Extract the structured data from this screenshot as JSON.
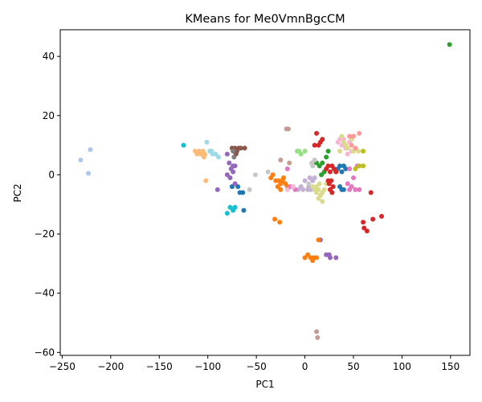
{
  "chart_data": {
    "type": "scatter",
    "title": "KMeans for Me0VmnBgcCM",
    "xlabel": "PC1",
    "ylabel": "PC2",
    "xlim": [
      -252,
      170
    ],
    "ylim": [
      -61,
      49
    ],
    "xticks": [
      -250,
      -200,
      -150,
      -100,
      -50,
      0,
      50,
      100,
      150
    ],
    "yticks": [
      -60,
      -40,
      -20,
      0,
      20,
      40
    ],
    "grid": false,
    "legend": "none",
    "series": [
      {
        "color": "#aec7e8",
        "points": [
          [
            -231,
            5
          ],
          [
            -221,
            8.5
          ],
          [
            -223,
            0.5
          ]
        ]
      },
      {
        "color": "#2ca02c",
        "points": [
          [
            149,
            44
          ],
          [
            18,
            4
          ],
          [
            22,
            6
          ],
          [
            15,
            3
          ],
          [
            20,
            1
          ],
          [
            17,
            0
          ],
          [
            24,
            8
          ],
          [
            12,
            4
          ]
        ]
      },
      {
        "color": "#17becf",
        "points": [
          [
            -125,
            10
          ],
          [
            -80,
            -13
          ],
          [
            -77,
            -11
          ],
          [
            -74,
            -12
          ],
          [
            -72,
            -11
          ]
        ]
      },
      {
        "color": "#9edae5",
        "points": [
          [
            -101,
            11
          ],
          [
            -98,
            8
          ],
          [
            -95,
            7
          ],
          [
            -92,
            7
          ],
          [
            -89,
            6
          ],
          [
            -96,
            8
          ]
        ]
      },
      {
        "color": "#ffbb78",
        "points": [
          [
            -113,
            8
          ],
          [
            -111,
            7
          ],
          [
            -109,
            8
          ],
          [
            -107,
            7
          ],
          [
            -105,
            8
          ],
          [
            -104,
            6
          ],
          [
            -103,
            7
          ],
          [
            -102,
            -2
          ]
        ]
      },
      {
        "color": "#1f77b4",
        "points": [
          [
            -75,
            -4
          ],
          [
            -69,
            -4
          ],
          [
            -67,
            -6
          ],
          [
            -64,
            -6
          ],
          [
            -63,
            -12
          ],
          [
            34,
            2
          ],
          [
            36,
            3
          ],
          [
            38,
            1
          ],
          [
            40,
            3
          ],
          [
            42,
            2
          ],
          [
            36,
            -4
          ],
          [
            38,
            -5
          ],
          [
            40,
            -5
          ]
        ]
      },
      {
        "color": "#9467bd",
        "points": [
          [
            -80,
            7
          ],
          [
            -78,
            4
          ],
          [
            -76,
            2
          ],
          [
            -74,
            3
          ],
          [
            -80,
            0
          ],
          [
            -77,
            -1
          ],
          [
            -74,
            1
          ],
          [
            -72,
            -3
          ],
          [
            -90,
            -5
          ],
          [
            -72,
            3
          ],
          [
            16,
            -22
          ],
          [
            22,
            -27
          ],
          [
            25,
            -27
          ],
          [
            26,
            -28
          ],
          [
            32,
            -28
          ]
        ]
      },
      {
        "color": "#8c564b",
        "points": [
          [
            -75,
            9
          ],
          [
            -72,
            9
          ],
          [
            -70,
            8
          ],
          [
            -68,
            9
          ],
          [
            -66,
            9
          ],
          [
            -71,
            7
          ],
          [
            -62,
            9
          ]
        ]
      },
      {
        "color": "#7f7f7f",
        "points": [
          [
            -74,
            8
          ],
          [
            -73,
            6
          ]
        ]
      },
      {
        "color": "#c5b0d5",
        "points": [
          [
            -7,
            -5
          ],
          [
            -2,
            -5
          ],
          [
            3,
            -5
          ],
          [
            6,
            -5
          ],
          [
            8,
            -2
          ],
          [
            0,
            -2
          ],
          [
            5,
            -1
          ],
          [
            10,
            -1
          ],
          [
            4,
            -4
          ],
          [
            -4,
            -4
          ]
        ]
      },
      {
        "color": "#c7c7c7",
        "points": [
          [
            -57,
            -5
          ],
          [
            -51,
            0
          ],
          [
            -38,
            1
          ],
          [
            4,
            -3
          ],
          [
            7,
            4
          ],
          [
            10,
            5
          ],
          [
            8,
            3
          ]
        ]
      },
      {
        "color": "#ff7f0e",
        "points": [
          [
            -30,
            -2
          ],
          [
            -27,
            -2
          ],
          [
            -25,
            -3
          ],
          [
            -23,
            -2
          ],
          [
            -28,
            -4
          ],
          [
            -25,
            -5
          ],
          [
            -20,
            -3
          ],
          [
            -18,
            -4
          ],
          [
            -22,
            -1
          ],
          [
            -35,
            -1
          ],
          [
            -33,
            0
          ],
          [
            -31,
            -15
          ],
          [
            -26,
            -16
          ],
          [
            0,
            -28
          ],
          [
            3,
            -27
          ],
          [
            6,
            -28
          ],
          [
            8,
            -29
          ],
          [
            9,
            -28
          ],
          [
            12,
            -28
          ],
          [
            14,
            -22
          ]
        ]
      },
      {
        "color": "#e377c2",
        "points": [
          [
            -18,
            2
          ],
          [
            -15,
            -4
          ],
          [
            -10,
            -5
          ],
          [
            44,
            -3
          ],
          [
            48,
            -4
          ],
          [
            52,
            -5
          ],
          [
            56,
            -5
          ],
          [
            46,
            2
          ],
          [
            50,
            -1
          ],
          [
            54,
            3
          ],
          [
            46,
            -5
          ]
        ]
      },
      {
        "color": "#f7b6d2",
        "points": [
          [
            -12,
            -4
          ],
          [
            -18,
            -5
          ],
          [
            36,
            12
          ],
          [
            38,
            10
          ],
          [
            42,
            9
          ],
          [
            44,
            7
          ],
          [
            46,
            11
          ],
          [
            48,
            8
          ],
          [
            40,
            12
          ],
          [
            34,
            11
          ]
        ]
      },
      {
        "color": "#c49c94",
        "points": [
          [
            -19,
            15.5
          ],
          [
            -17,
            15.5
          ],
          [
            -25,
            5
          ],
          [
            -16,
            4
          ],
          [
            12,
            -53
          ],
          [
            13,
            -55
          ]
        ]
      },
      {
        "color": "#98df8a",
        "points": [
          [
            -8,
            8
          ],
          [
            -6,
            8
          ],
          [
            -4,
            7
          ],
          [
            0,
            8
          ]
        ]
      },
      {
        "color": "#dbdb8d",
        "points": [
          [
            10,
            -5
          ],
          [
            12,
            -6
          ],
          [
            14,
            -8
          ],
          [
            16,
            -7
          ],
          [
            18,
            -6
          ],
          [
            20,
            -5
          ],
          [
            22,
            -3
          ],
          [
            15,
            -3
          ],
          [
            12,
            -4
          ],
          [
            18,
            -9
          ],
          [
            14,
            -5
          ],
          [
            8,
            -4
          ],
          [
            38,
            13
          ],
          [
            40,
            11
          ],
          [
            44,
            9
          ],
          [
            48,
            12
          ],
          [
            50,
            8
          ],
          [
            55,
            8
          ],
          [
            36,
            8
          ],
          [
            42,
            10
          ]
        ]
      },
      {
        "color": "#d62728",
        "points": [
          [
            12,
            14
          ],
          [
            14,
            10
          ],
          [
            16,
            11
          ],
          [
            18,
            12
          ],
          [
            10,
            10
          ],
          [
            22,
            2
          ],
          [
            24,
            3
          ],
          [
            26,
            1
          ],
          [
            28,
            3
          ],
          [
            30,
            2
          ],
          [
            25,
            -3
          ],
          [
            27,
            -2
          ],
          [
            29,
            -4
          ],
          [
            26,
            -5
          ],
          [
            32,
            1
          ],
          [
            60,
            -16
          ],
          [
            61,
            -18
          ],
          [
            64,
            -19
          ],
          [
            70,
            -15
          ],
          [
            79,
            -14
          ],
          [
            68,
            -6
          ],
          [
            24,
            -2
          ],
          [
            28,
            -6
          ]
        ]
      },
      {
        "color": "#bcbd22",
        "points": [
          [
            52,
            2
          ],
          [
            56,
            3
          ],
          [
            60,
            8
          ],
          [
            60,
            3
          ]
        ]
      },
      {
        "color": "#ff9896",
        "points": [
          [
            46,
            13
          ],
          [
            50,
            13
          ],
          [
            56,
            14
          ],
          [
            52,
            9
          ],
          [
            48,
            10
          ]
        ]
      }
    ]
  }
}
